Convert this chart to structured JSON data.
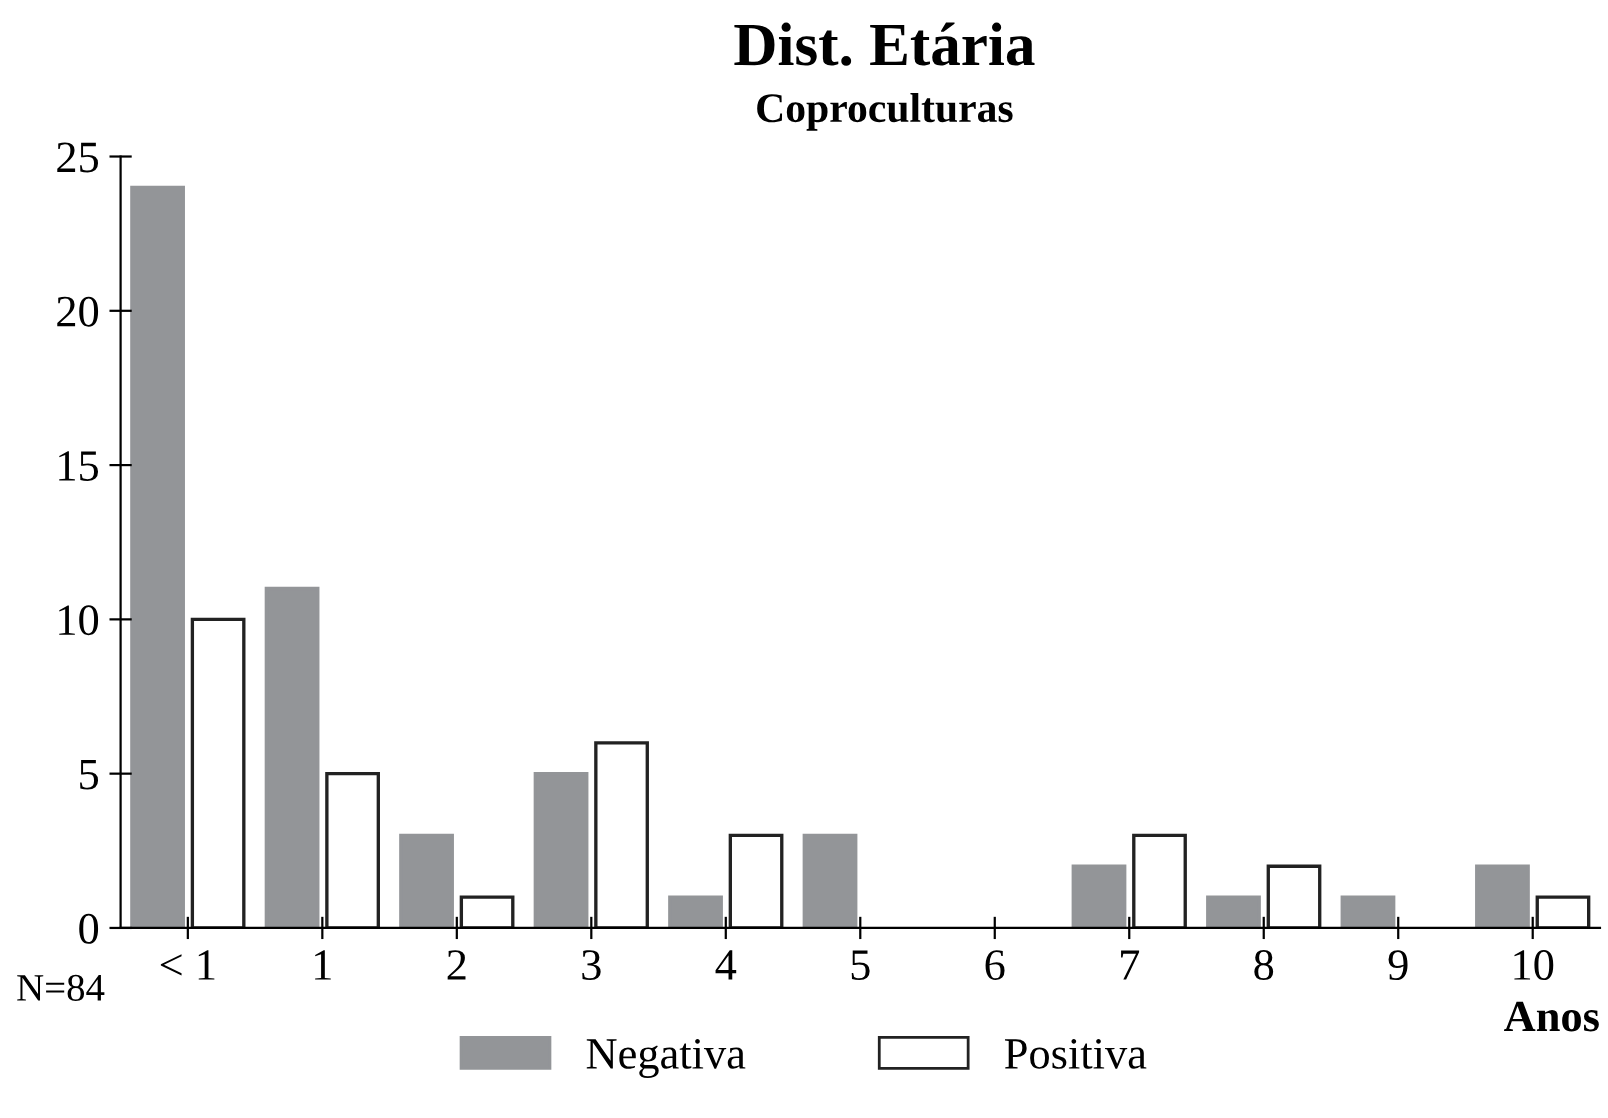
{
  "chart_data": {
    "type": "bar",
    "title": "Dist. Etária",
    "subtitle": "Coproculturas",
    "xlabel": "Anos",
    "categories": [
      "< 1",
      "1",
      "2",
      "3",
      "4",
      "5",
      "6",
      "7",
      "8",
      "9",
      "10"
    ],
    "series": [
      {
        "name": "Negativa",
        "color": "#939598",
        "values": [
          24,
          11,
          3,
          5,
          1,
          3,
          0,
          2,
          1,
          1,
          2
        ]
      },
      {
        "name": "Positiva",
        "color": "#ffffff",
        "values": [
          10,
          5,
          1,
          6,
          3,
          0,
          0,
          3,
          2,
          0,
          1
        ]
      }
    ],
    "ylim": [
      0,
      25
    ],
    "yticks": [
      0,
      5,
      10,
      15,
      20,
      25
    ],
    "grid": false,
    "legend": "bottom",
    "annotations": [
      "N=84"
    ]
  }
}
